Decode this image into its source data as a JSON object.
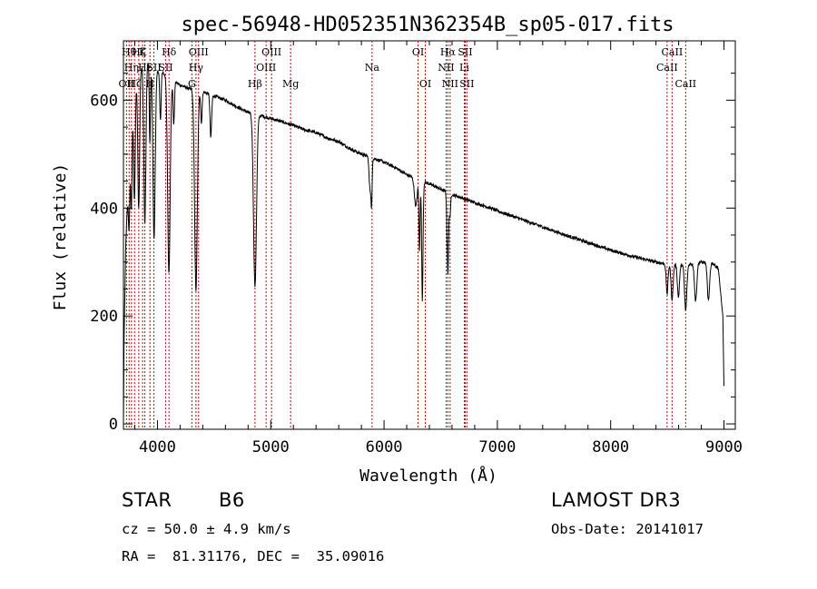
{
  "chart_data": {
    "type": "line",
    "title": "spec-56948-HD052351N362354B_sp05-017.fits",
    "xlabel": "Wavelength (Å)",
    "ylabel": "Flux (relative)",
    "xlim": [
      3700,
      9100
    ],
    "ylim": [
      -10,
      710
    ],
    "x_ticks": [
      4000,
      5000,
      6000,
      7000,
      8000,
      9000
    ],
    "y_ticks": [
      0,
      200,
      400,
      600
    ],
    "grid": false,
    "line_color": "#000000",
    "marker_color": "#cc0000",
    "continuum": [
      {
        "x": 3700,
        "y": 0
      },
      {
        "x": 3705,
        "y": 150
      },
      {
        "x": 3720,
        "y": 330
      },
      {
        "x": 3750,
        "y": 480
      },
      {
        "x": 3780,
        "y": 580
      },
      {
        "x": 3800,
        "y": 620
      },
      {
        "x": 3850,
        "y": 660
      },
      {
        "x": 3900,
        "y": 675
      },
      {
        "x": 3950,
        "y": 665
      },
      {
        "x": 4000,
        "y": 655
      },
      {
        "x": 4050,
        "y": 650
      },
      {
        "x": 4100,
        "y": 640
      },
      {
        "x": 4150,
        "y": 635
      },
      {
        "x": 4200,
        "y": 628
      },
      {
        "x": 4300,
        "y": 620
      },
      {
        "x": 4400,
        "y": 616
      },
      {
        "x": 4500,
        "y": 608
      },
      {
        "x": 4600,
        "y": 600
      },
      {
        "x": 4700,
        "y": 588
      },
      {
        "x": 4800,
        "y": 577
      },
      {
        "x": 4900,
        "y": 572
      },
      {
        "x": 5000,
        "y": 566
      },
      {
        "x": 5100,
        "y": 560
      },
      {
        "x": 5200,
        "y": 553
      },
      {
        "x": 5300,
        "y": 545
      },
      {
        "x": 5400,
        "y": 540
      },
      {
        "x": 5500,
        "y": 530
      },
      {
        "x": 5600,
        "y": 523
      },
      {
        "x": 5700,
        "y": 510
      },
      {
        "x": 5800,
        "y": 500
      },
      {
        "x": 5900,
        "y": 493
      },
      {
        "x": 6000,
        "y": 485
      },
      {
        "x": 6100,
        "y": 475
      },
      {
        "x": 6200,
        "y": 462
      },
      {
        "x": 6300,
        "y": 452
      },
      {
        "x": 6400,
        "y": 445
      },
      {
        "x": 6500,
        "y": 435
      },
      {
        "x": 6600,
        "y": 425
      },
      {
        "x": 6700,
        "y": 418
      },
      {
        "x": 6800,
        "y": 410
      },
      {
        "x": 6900,
        "y": 403
      },
      {
        "x": 7000,
        "y": 395
      },
      {
        "x": 7200,
        "y": 380
      },
      {
        "x": 7400,
        "y": 365
      },
      {
        "x": 7600,
        "y": 350
      },
      {
        "x": 7800,
        "y": 336
      },
      {
        "x": 8000,
        "y": 322
      },
      {
        "x": 8200,
        "y": 310
      },
      {
        "x": 8400,
        "y": 300
      },
      {
        "x": 8500,
        "y": 296
      },
      {
        "x": 8600,
        "y": 295
      },
      {
        "x": 8700,
        "y": 296
      },
      {
        "x": 8800,
        "y": 300
      },
      {
        "x": 8900,
        "y": 298
      },
      {
        "x": 8950,
        "y": 288
      },
      {
        "x": 8990,
        "y": 200
      },
      {
        "x": 9000,
        "y": 70
      }
    ],
    "absorption_lines": [
      {
        "x": 3750,
        "depth": 120,
        "width": 6
      },
      {
        "x": 3770,
        "depth": 150,
        "width": 6
      },
      {
        "x": 3797,
        "depth": 200,
        "width": 7
      },
      {
        "x": 3835,
        "depth": 250,
        "width": 8
      },
      {
        "x": 3889,
        "depth": 300,
        "width": 9
      },
      {
        "x": 3933,
        "depth": 150,
        "width": 5
      },
      {
        "x": 3970,
        "depth": 320,
        "width": 10
      },
      {
        "x": 4026,
        "depth": 90,
        "width": 6
      },
      {
        "x": 4101,
        "depth": 360,
        "width": 11
      },
      {
        "x": 4144,
        "depth": 80,
        "width": 6
      },
      {
        "x": 4340,
        "depth": 370,
        "width": 12
      },
      {
        "x": 4388,
        "depth": 60,
        "width": 6
      },
      {
        "x": 4471,
        "depth": 80,
        "width": 7
      },
      {
        "x": 4861,
        "depth": 320,
        "width": 13
      },
      {
        "x": 5876,
        "depth": 60,
        "width": 8
      },
      {
        "x": 5890,
        "depth": 80,
        "width": 5
      },
      {
        "x": 6280,
        "depth": 50,
        "width": 12
      },
      {
        "x": 6313,
        "depth": 130,
        "width": 5
      },
      {
        "x": 6338,
        "depth": 220,
        "width": 6
      },
      {
        "x": 6563,
        "depth": 150,
        "width": 7
      },
      {
        "x": 6583,
        "depth": 40,
        "width": 5
      },
      {
        "x": 8498,
        "depth": 55,
        "width": 8
      },
      {
        "x": 8542,
        "depth": 65,
        "width": 9
      },
      {
        "x": 8598,
        "depth": 60,
        "width": 9
      },
      {
        "x": 8662,
        "depth": 85,
        "width": 10
      },
      {
        "x": 8750,
        "depth": 70,
        "width": 10
      },
      {
        "x": 8863,
        "depth": 70,
        "width": 10
      }
    ],
    "line_markers": [
      {
        "x": 3727,
        "label": "OII",
        "row": 3
      },
      {
        "x": 3750,
        "label": "Hθ",
        "row": 1
      },
      {
        "x": 3771,
        "label": "Hη",
        "row": 2
      },
      {
        "x": 3798,
        "label": "Hζ",
        "row": 3
      },
      {
        "x": 3835,
        "label": "Hζ",
        "row": 1
      },
      {
        "x": 3869,
        "label": "K",
        "row": 1
      },
      {
        "x": 3889,
        "label": "Hε",
        "row": 2
      },
      {
        "x": 3934,
        "label": "H",
        "row": 3
      },
      {
        "x": 3969,
        "label": "SII",
        "row": 2
      },
      {
        "x": 4072,
        "label": "SII",
        "row": 2
      },
      {
        "x": 4102,
        "label": "Hδ",
        "row": 1
      },
      {
        "x": 4304,
        "label": "G",
        "row": 3
      },
      {
        "x": 4340,
        "label": "Hγ",
        "row": 2
      },
      {
        "x": 4363,
        "label": "OIII",
        "row": 1
      },
      {
        "x": 4861,
        "label": "Hβ",
        "row": 3
      },
      {
        "x": 4959,
        "label": "OIII",
        "row": 2
      },
      {
        "x": 5007,
        "label": "OIII",
        "row": 1
      },
      {
        "x": 5175,
        "label": "Mg",
        "row": 3
      },
      {
        "x": 5894,
        "label": "Na",
        "row": 2
      },
      {
        "x": 6300,
        "label": "OI",
        "row": 1
      },
      {
        "x": 6364,
        "label": "OI",
        "row": 3
      },
      {
        "x": 6548,
        "label": "NII",
        "row": 2
      },
      {
        "x": 6563,
        "label": "Hα",
        "row": 1
      },
      {
        "x": 6583,
        "label": "NII",
        "row": 3
      },
      {
        "x": 6708,
        "label": "Li",
        "row": 2
      },
      {
        "x": 6716,
        "label": "SII",
        "row": 1
      },
      {
        "x": 6731,
        "label": "SII",
        "row": 3
      },
      {
        "x": 8498,
        "label": "CaII",
        "row": 2
      },
      {
        "x": 8542,
        "label": "CaII",
        "row": 1
      },
      {
        "x": 8662,
        "label": "CaII",
        "row": 3
      }
    ]
  },
  "info": {
    "object_class": "STAR",
    "subclass": "B6",
    "survey": "LAMOST DR3",
    "redshift_line": "cz = 50.0 ± 4.9 km/s",
    "obs_date_line": "Obs-Date: 20141017",
    "coords_line": "RA =  81.31176, DEC =  35.09016"
  }
}
